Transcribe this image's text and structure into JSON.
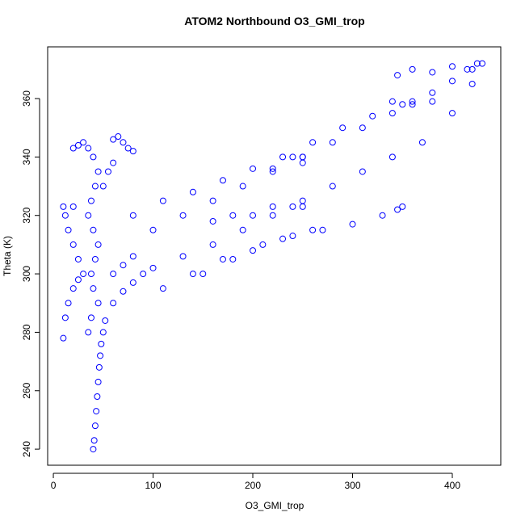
{
  "chart_data": {
    "type": "scatter",
    "title": "ATOM2 Northbound O3_GMI_trop",
    "x_label": "O3_GMI_trop",
    "y_label": "Theta (K)",
    "color": "#0000ff",
    "xlim": [
      -5.7,
      448.6
    ],
    "ylim": [
      234.5,
      377.7
    ],
    "xticks": [
      0,
      100,
      200,
      300,
      400
    ],
    "yticks": [
      240,
      260,
      280,
      300,
      320,
      340,
      360
    ],
    "x": [
      40,
      41,
      42,
      43,
      44,
      45,
      46,
      47,
      48,
      50,
      52,
      45,
      40,
      38,
      42,
      45,
      40,
      35,
      38,
      42,
      45,
      40,
      35,
      30,
      25,
      20,
      60,
      65,
      70,
      75,
      80,
      50,
      55,
      60,
      30,
      25,
      20,
      15,
      12,
      10,
      20,
      10,
      12,
      15,
      20,
      25,
      35,
      38,
      60,
      70,
      80,
      60,
      70,
      80,
      90,
      100,
      100,
      130,
      160,
      190,
      220,
      250,
      280,
      310,
      340,
      360,
      380,
      400,
      420,
      430,
      130,
      160,
      190,
      220,
      250,
      280,
      310,
      340,
      370,
      400,
      420,
      345,
      360,
      380,
      400,
      415,
      425,
      340,
      360,
      380,
      160,
      180,
      200,
      220,
      240,
      250,
      150,
      180,
      210,
      240,
      270,
      300,
      330,
      345,
      350,
      110,
      140,
      170,
      200,
      230,
      260,
      220,
      240,
      250,
      250,
      80,
      110,
      140,
      170,
      200,
      230,
      260,
      290,
      320,
      350
    ],
    "values": [
      240,
      243,
      248,
      253,
      258,
      263,
      268,
      272,
      276,
      280,
      284,
      290,
      295,
      300,
      305,
      310,
      315,
      320,
      325,
      330,
      335,
      340,
      343,
      345,
      344,
      343,
      346,
      347,
      345,
      343,
      342,
      330,
      335,
      338,
      300,
      305,
      310,
      315,
      320,
      323,
      323,
      278,
      285,
      290,
      295,
      298,
      280,
      285,
      300,
      303,
      306,
      290,
      294,
      297,
      300,
      302,
      315,
      320,
      325,
      330,
      335,
      340,
      345,
      350,
      355,
      358,
      362,
      366,
      370,
      372,
      306,
      310,
      315,
      320,
      325,
      330,
      335,
      340,
      345,
      355,
      365,
      368,
      370,
      369,
      371,
      370,
      372,
      359,
      359,
      359,
      318,
      320,
      320,
      323,
      323,
      323,
      300,
      305,
      310,
      313,
      315,
      317,
      320,
      322,
      323,
      295,
      300,
      305,
      308,
      312,
      315,
      336,
      340,
      340,
      338,
      320,
      325,
      328,
      332,
      336,
      340,
      345,
      350,
      354,
      358
    ]
  }
}
